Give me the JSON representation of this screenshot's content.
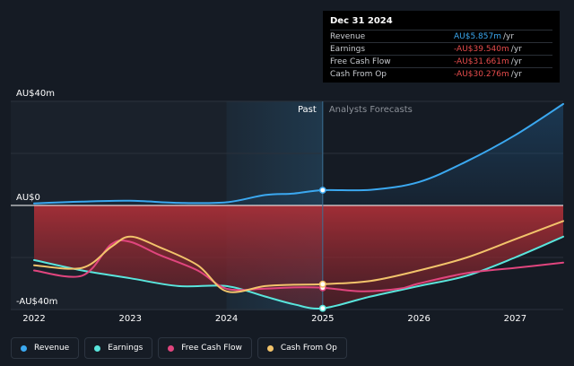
{
  "chart_data": {
    "type": "line",
    "y_axis_labels": [
      "AU$40m",
      "AU$0",
      "-AU$40m"
    ],
    "ylim": [
      -40,
      40
    ],
    "xlim": [
      2022,
      2027.5
    ],
    "x_ticks": [
      2022,
      2023,
      2024,
      2025,
      2026,
      2027
    ],
    "x_tick_labels": [
      "2022",
      "2023",
      "2024",
      "2025",
      "2026",
      "2027"
    ],
    "past_label": "Past",
    "forecast_label": "Analysts Forecasts",
    "divider_x": 2025,
    "highlight_x_start": 2024,
    "series": [
      {
        "name": "Revenue",
        "color": "#3ba8f0",
        "points": [
          [
            2022,
            0.8
          ],
          [
            2022.5,
            1.5
          ],
          [
            2023,
            1.8
          ],
          [
            2023.5,
            1.0
          ],
          [
            2024,
            1.2
          ],
          [
            2024.4,
            4.0
          ],
          [
            2024.7,
            4.6
          ],
          [
            2025,
            5.857
          ],
          [
            2025.5,
            6.0
          ],
          [
            2026,
            9.0
          ],
          [
            2026.5,
            17.0
          ],
          [
            2027,
            27.0
          ],
          [
            2027.5,
            39.0
          ]
        ]
      },
      {
        "name": "Earnings",
        "color": "#59e5dc",
        "points": [
          [
            2022,
            -21
          ],
          [
            2022.5,
            -25
          ],
          [
            2023,
            -28
          ],
          [
            2023.5,
            -31
          ],
          [
            2024,
            -31
          ],
          [
            2024.4,
            -35
          ],
          [
            2024.7,
            -38
          ],
          [
            2025,
            -39.54
          ],
          [
            2025.5,
            -35
          ],
          [
            2026,
            -31
          ],
          [
            2026.5,
            -27
          ],
          [
            2027,
            -20
          ],
          [
            2027.5,
            -12
          ]
        ]
      },
      {
        "name": "Free Cash Flow",
        "color": "#e0457e",
        "points": [
          [
            2022,
            -25
          ],
          [
            2022.5,
            -27
          ],
          [
            2022.8,
            -15
          ],
          [
            2023,
            -14
          ],
          [
            2023.3,
            -19
          ],
          [
            2023.7,
            -25
          ],
          [
            2024,
            -32
          ],
          [
            2024.4,
            -32
          ],
          [
            2024.7,
            -31.5
          ],
          [
            2025,
            -31.661
          ],
          [
            2025.4,
            -33
          ],
          [
            2025.8,
            -32
          ],
          [
            2026,
            -30
          ],
          [
            2026.5,
            -26
          ],
          [
            2027,
            -24
          ],
          [
            2027.5,
            -22
          ]
        ]
      },
      {
        "name": "Cash From Op",
        "color": "#f2c36b",
        "points": [
          [
            2022,
            -23
          ],
          [
            2022.5,
            -24
          ],
          [
            2022.8,
            -16
          ],
          [
            2023,
            -12
          ],
          [
            2023.3,
            -16
          ],
          [
            2023.7,
            -23
          ],
          [
            2024,
            -33
          ],
          [
            2024.4,
            -31
          ],
          [
            2024.7,
            -30.5
          ],
          [
            2025,
            -30.276
          ],
          [
            2025.5,
            -29
          ],
          [
            2026,
            -25
          ],
          [
            2026.5,
            -20
          ],
          [
            2027,
            -13
          ],
          [
            2027.5,
            -6
          ]
        ]
      }
    ],
    "tooltip": {
      "date": "Dec 31 2024",
      "rows": [
        {
          "name": "Revenue",
          "value": "AU$5.857m",
          "unit": "/yr",
          "color": "#3ba8f0"
        },
        {
          "name": "Earnings",
          "value": "-AU$39.540m",
          "unit": "/yr",
          "color": "#e64c4c"
        },
        {
          "name": "Free Cash Flow",
          "value": "-AU$31.661m",
          "unit": "/yr",
          "color": "#e64c4c"
        },
        {
          "name": "Cash From Op",
          "value": "-AU$30.276m",
          "unit": "/yr",
          "color": "#e64c4c"
        }
      ]
    },
    "legend": [
      {
        "name": "Revenue",
        "color": "#3ba8f0"
      },
      {
        "name": "Earnings",
        "color": "#59e5dc"
      },
      {
        "name": "Free Cash Flow",
        "color": "#e0457e"
      },
      {
        "name": "Cash From Op",
        "color": "#f2c36b"
      }
    ]
  }
}
